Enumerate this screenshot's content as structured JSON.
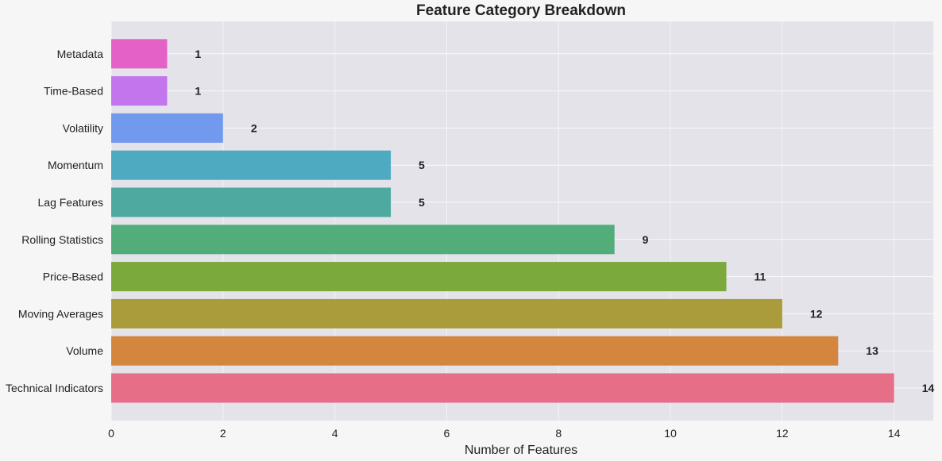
{
  "chart_data": {
    "type": "bar",
    "orientation": "horizontal",
    "title": "Feature Category Breakdown",
    "xlabel": "Number of Features",
    "ylabel": "",
    "xlim": [
      0,
      14.7
    ],
    "xticks": [
      0,
      2,
      4,
      6,
      8,
      10,
      12,
      14
    ],
    "grid": true,
    "legend": "none",
    "categories": [
      "Technical Indicators",
      "Volume",
      "Moving Averages",
      "Price-Based",
      "Rolling Statistics",
      "Lag Features",
      "Momentum",
      "Volatility",
      "Time-Based",
      "Metadata"
    ],
    "values": [
      14,
      13,
      12,
      11,
      9,
      5,
      5,
      2,
      1,
      1
    ],
    "data_labels": [
      "14",
      "13",
      "12",
      "11",
      "9",
      "5",
      "5",
      "2",
      "1",
      "1"
    ],
    "colors": [
      "#e56b85",
      "#d3843a",
      "#a89a37",
      "#78a737",
      "#4fab78",
      "#4aa79f",
      "#4aa8c0",
      "#6e97ed",
      "#c172ec",
      "#e35ec7"
    ]
  },
  "style": {
    "page_bg": "#f6f6f6",
    "plot_bg": "#e3e3e9",
    "grid_color": "#ffffff"
  }
}
